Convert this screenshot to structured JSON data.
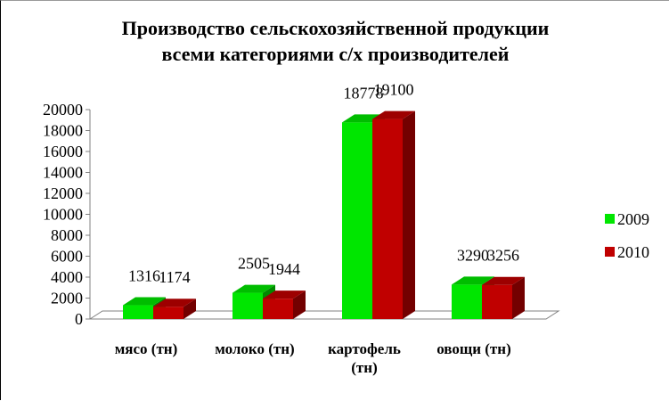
{
  "chart_data": {
    "type": "bar",
    "title_lines": [
      "Производство сельскохозяйственной продукции",
      "всеми категориями с/х производителей"
    ],
    "categories": [
      [
        "мясо (тн)"
      ],
      [
        "молоко (тн)"
      ],
      [
        "картофель",
        "(тн)"
      ],
      [
        "овощи (тн)"
      ]
    ],
    "series": [
      {
        "name": "2009",
        "color": "#00e600",
        "values": [
          1316,
          2505,
          18778,
          3290
        ]
      },
      {
        "name": "2010",
        "color": "#c00000",
        "values": [
          1174,
          1944,
          19100,
          3256
        ]
      }
    ],
    "y_ticks": [
      "0",
      "2000",
      "4000",
      "6000",
      "8000",
      "10000",
      "12000",
      "14000",
      "16000",
      "18000",
      "20000"
    ],
    "ylim": [
      0,
      20000
    ],
    "legend_position": "right",
    "grid": false
  }
}
